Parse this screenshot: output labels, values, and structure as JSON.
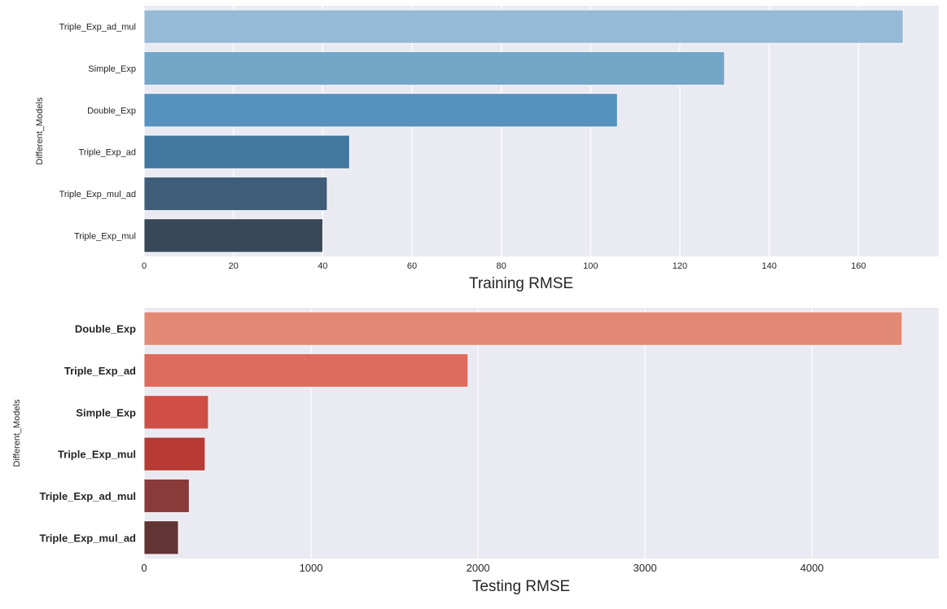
{
  "chart_data": [
    {
      "type": "bar",
      "orientation": "horizontal",
      "categories": [
        "Triple_Exp_ad_mul",
        "Simple_Exp",
        "Double_Exp",
        "Triple_Exp_ad",
        "Triple_Exp_mul_ad",
        "Triple_Exp_mul"
      ],
      "values": [
        170,
        130,
        106,
        46,
        41,
        40
      ],
      "colors": [
        "#96bad6",
        "#74a7c7",
        "#5692bd",
        "#42779f",
        "#3f5d78",
        "#384858"
      ],
      "xlabel": "Training RMSE",
      "ylabel": "Different_Models",
      "xlim": [
        0,
        178
      ],
      "xticks": [
        0,
        20,
        40,
        60,
        80,
        100,
        120,
        140,
        160
      ],
      "bold_categories": false
    },
    {
      "type": "bar",
      "orientation": "horizontal",
      "categories": [
        "Double_Exp",
        "Triple_Exp_ad",
        "Simple_Exp",
        "Triple_Exp_mul",
        "Triple_Exp_ad_mul",
        "Triple_Exp_mul_ad"
      ],
      "values": [
        4540,
        1940,
        385,
        365,
        270,
        205
      ],
      "colors": [
        "#e38a77",
        "#dd6c5e",
        "#cf4f46",
        "#b73a35",
        "#8b3a3a",
        "#623434"
      ],
      "xlabel": "Testing RMSE",
      "ylabel": "Different_Models",
      "xlim": [
        0,
        4760
      ],
      "xticks": [
        0,
        1000,
        2000,
        3000,
        4000
      ],
      "bold_categories": true
    }
  ]
}
